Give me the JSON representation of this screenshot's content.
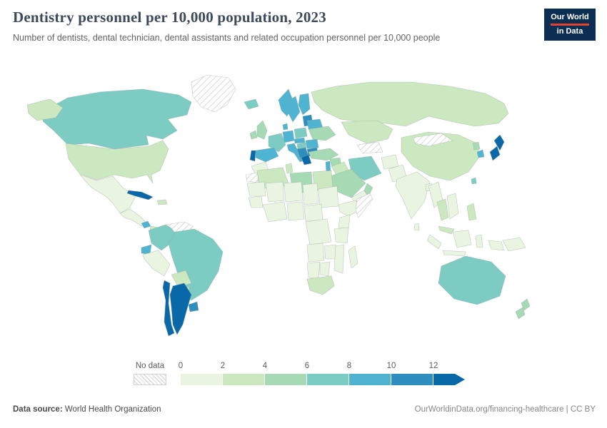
{
  "header": {
    "logo": {
      "line1": "Our World",
      "line2": "in Data"
    }
  },
  "chart_data": {
    "type": "choropleth",
    "title": "Dentistry personnel per 10,000 population, 2023",
    "subtitle": "Number of dentists, dental technician, dental assistants and related occupation personnel per 10,000 people",
    "year": 2023,
    "unit": "per 10,000 people",
    "legend": {
      "no_data_label": "No data",
      "bin_size": 2,
      "tick_labels": [
        "0",
        "2",
        "4",
        "6",
        "8",
        "10",
        "12"
      ],
      "colors": [
        "#e9f5e0",
        "#cbe8c0",
        "#a5dab4",
        "#7cccc4",
        "#4fb3d2",
        "#2e8ebe",
        "#0868a8"
      ],
      "no_data_pattern": "diagonal-hatch"
    },
    "values": {
      "Canada": 6.5,
      "United States": 3.5,
      "Greenland": null,
      "Mexico": 1.5,
      "Guatemala": 1.0,
      "Costa Rica": 8.0,
      "Panama": 3.0,
      "Cuba": 12.5,
      "Dominican Republic": 2.0,
      "Colombia": 6.0,
      "Venezuela": null,
      "Guyana": 1.2,
      "Ecuador": 9.0,
      "Peru": 1.8,
      "Brazil": 6.5,
      "Bolivia": 2.5,
      "Paraguay": 4.5,
      "Uruguay": 10.5,
      "Argentina": 12.2,
      "Chile": 13.5,
      "Iceland": 7.0,
      "Ireland": 5.0,
      "United Kingdom": 4.5,
      "Norway": 9.0,
      "Sweden": 9.5,
      "Finland": 9.0,
      "Denmark": 8.5,
      "Lithuania": 11.0,
      "Belarus": 9.5,
      "Poland": 7.0,
      "Germany": 8.5,
      "France": 7.5,
      "Spain": 8.2,
      "Portugal": 12.4,
      "Italy": 8.3,
      "Czechia": 8.0,
      "Hungary": 7.0,
      "Serbia": 10.0,
      "Romania": 9.0,
      "Bulgaria": 11.0,
      "Greece": 13.0,
      "Ukraine": 5.5,
      "Russia": 3.2,
      "Kazakhstan": 3.5,
      "Turkmenistan": null,
      "Turkey": 5.0,
      "Syria": 4.0,
      "Israel": 9.5,
      "Iraq": 3.0,
      "Iran": 6.0,
      "Saudi Arabia": 5.0,
      "Yemen": 0.8,
      "Oman": 4.0,
      "Afghanistan": 0.4,
      "Pakistan": 1.0,
      "India": 1.0,
      "Bangladesh": 0.6,
      "Sri Lanka": 1.2,
      "Myanmar": 0.7,
      "Thailand": 2.5,
      "Vietnam": 1.0,
      "Malaysia": 2.0,
      "Indonesia": 0.6,
      "Philippines": 2.2,
      "Papua New Guinea": 0.3,
      "China": 2.8,
      "Mongolia": null,
      "North Korea": 4.0,
      "South Korea": 9.0,
      "Japan": 12.3,
      "Taiwan": 7.0,
      "Australia": 6.5,
      "New Zealand": 5.0,
      "Morocco": 1.5,
      "Western Sahara": null,
      "Algeria": 2.2,
      "Tunisia": 3.5,
      "Libya": 4.5,
      "Egypt": 2.8,
      "Mauritania": 0.5,
      "Mali": 0.2,
      "Niger": 0.1,
      "Chad": 0.1,
      "Sudan": 0.8,
      "Ethiopia": 0.2,
      "Somalia": null,
      "Senegal": 0.4,
      "Ghana": 0.3,
      "Nigeria": 0.5,
      "Cameroon": 0.3,
      "Democratic Republic of Congo": 0.2,
      "Kenya": 0.4,
      "Tanzania": 0.3,
      "Angola": 0.5,
      "Zambia": 0.5,
      "Mozambique": 0.3,
      "Namibia": 1.2,
      "Botswana": 1.0,
      "South Africa": 2.0,
      "Madagascar": 0.3
    }
  },
  "footer": {
    "source_label": "Data source:",
    "source_value": " World Health Organization",
    "right_text": "OurWorldinData.org/financing-healthcare | CC BY"
  }
}
